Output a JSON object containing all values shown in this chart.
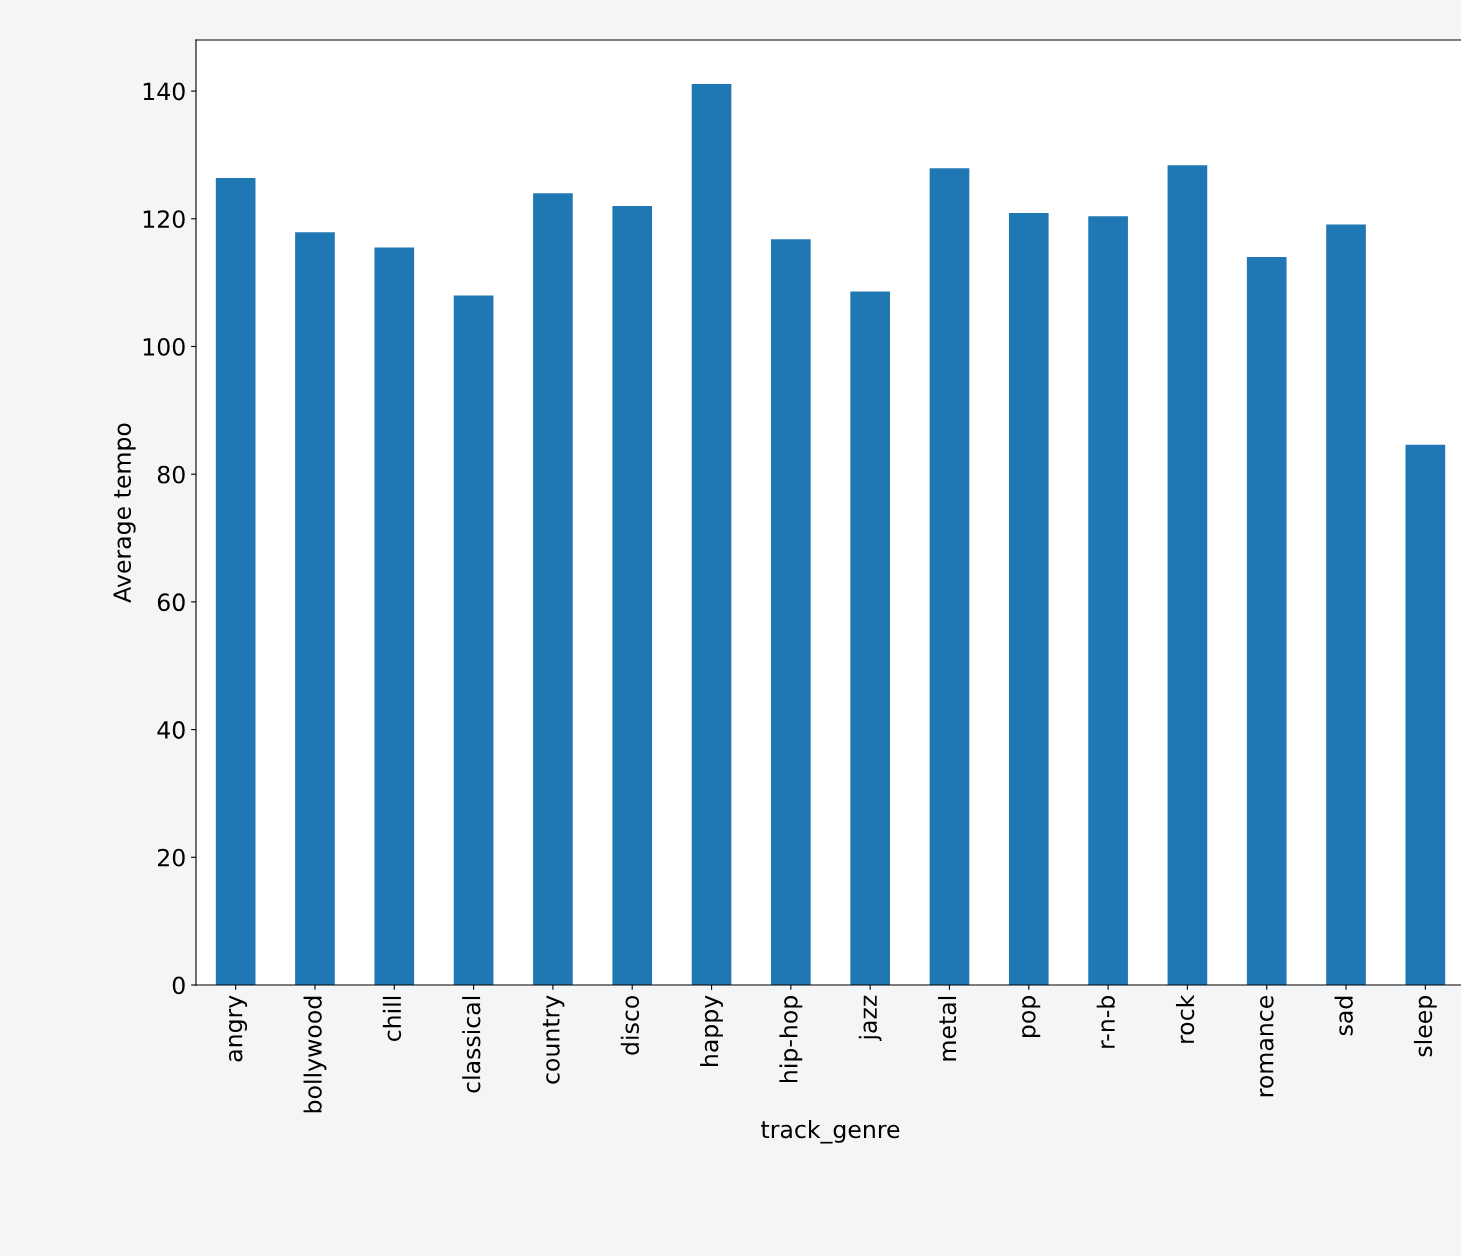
{
  "chart_data": {
    "type": "bar",
    "xlabel": "track_genre",
    "ylabel": "Average tempo",
    "categories": [
      "angry",
      "bollywood",
      "chill",
      "classical",
      "country",
      "disco",
      "happy",
      "hip-hop",
      "jazz",
      "metal",
      "pop",
      "r-n-b",
      "rock",
      "romance",
      "sad",
      "sleep"
    ],
    "values": [
      126.4,
      117.9,
      115.5,
      108.0,
      124.0,
      122.0,
      141.1,
      116.8,
      108.6,
      127.9,
      120.9,
      120.4,
      128.4,
      114.0,
      119.1,
      84.6
    ],
    "color": "#1f77b4",
    "ylim": [
      0,
      148
    ],
    "yticks": [
      0,
      20,
      40,
      60,
      80,
      100,
      120,
      140
    ],
    "grid": false,
    "legend": false
  }
}
